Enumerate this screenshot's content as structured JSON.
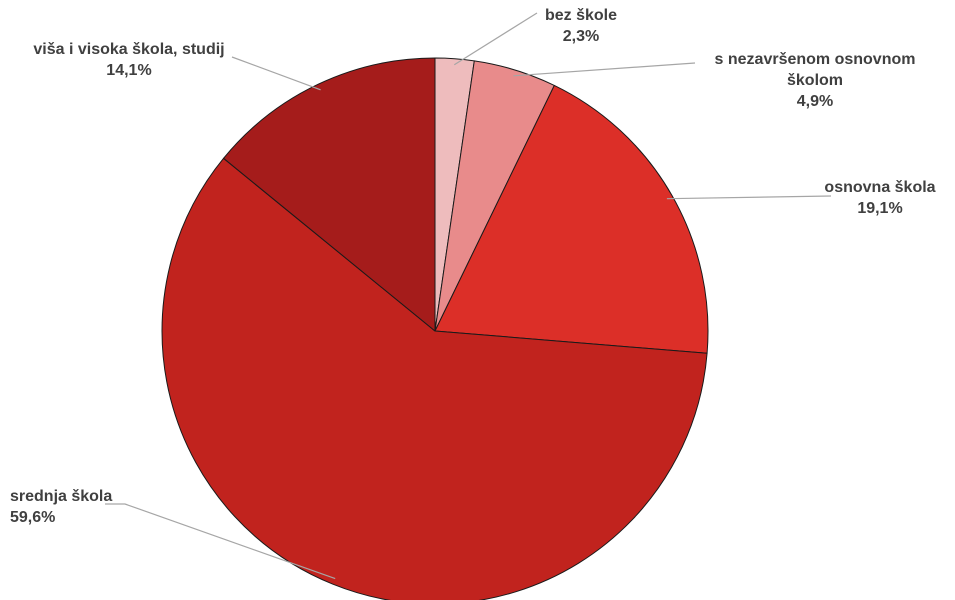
{
  "chart_data": {
    "type": "pie",
    "title": "",
    "slices": [
      {
        "label": "bez škole",
        "value": 2.3,
        "display": "2,3%",
        "color": "#eebcbd"
      },
      {
        "label": "s nezavršenom osnovnom školom",
        "label_lines": [
          "s nezavršenom osnovnom",
          "školom"
        ],
        "value": 4.9,
        "display": "4,9%",
        "color": "#e88b8b"
      },
      {
        "label": "osnovna škola",
        "value": 19.1,
        "display": "19,1%",
        "color": "#dc2f28"
      },
      {
        "label": "srednja škola",
        "value": 59.6,
        "display": "59,6%",
        "color": "#c1231e"
      },
      {
        "label": "viša i visoka škola, studij",
        "value": 14.1,
        "display": "14,1%",
        "color": "#a51c1b"
      }
    ],
    "start_angle": "12 o'clock",
    "direction": "clockwise",
    "legend": "none",
    "labels": "outside with leader lines"
  }
}
